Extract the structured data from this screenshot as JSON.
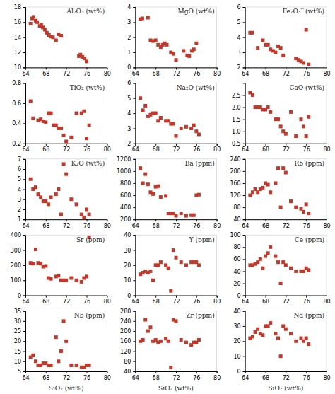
{
  "chart_data": [
    {
      "type": "scatter",
      "title": "Al₂O₃ (wt%)",
      "color": "#C0392B",
      "marker": "square",
      "xlim": [
        64,
        80
      ],
      "xticks": [
        64,
        68,
        72,
        76,
        80
      ],
      "ylim": [
        10,
        18
      ],
      "yticks": [
        10,
        12,
        14,
        16,
        18
      ],
      "x": [
        65.0,
        65.3,
        65.6,
        66.0,
        66.3,
        66.8,
        67.1,
        67.4,
        67.8,
        68.2,
        68.6,
        69.0,
        69.4,
        70.0,
        70.5,
        71.0,
        74.5,
        74.8,
        75.2,
        75.6,
        76.0
      ],
      "values": [
        15.8,
        16.5,
        16.7,
        16.2,
        16.0,
        15.5,
        15.7,
        15.3,
        15.0,
        14.6,
        14.3,
        14.1,
        14.0,
        13.6,
        14.4,
        14.2,
        11.5,
        11.7,
        11.4,
        11.2,
        10.8
      ]
    },
    {
      "type": "scatter",
      "title": "MgO (wt%)",
      "color": "#C0392B",
      "marker": "square",
      "xlim": [
        64,
        80
      ],
      "xticks": [
        64,
        68,
        72,
        76,
        80
      ],
      "ylim": [
        0,
        4
      ],
      "yticks": [
        0,
        1,
        2,
        3,
        4
      ],
      "x": [
        65.0,
        65.4,
        66.5,
        67.0,
        67.5,
        68.0,
        68.5,
        69.0,
        69.4,
        69.8,
        70.2,
        71.0,
        71.5,
        72.0,
        73.5,
        74.2,
        74.6,
        75.1,
        75.5,
        76.0
      ],
      "values": [
        3.2,
        3.25,
        3.3,
        1.8,
        1.75,
        1.8,
        1.5,
        1.35,
        1.5,
        1.6,
        1.5,
        1.0,
        0.9,
        0.5,
        1.1,
        0.8,
        0.75,
        1.1,
        1.2,
        1.6
      ]
    },
    {
      "type": "scatter",
      "title": "Fe₂O₃ᵀ (wt%)",
      "color": "#C0392B",
      "marker": "square",
      "xlim": [
        64,
        80
      ],
      "xticks": [
        64,
        68,
        72,
        76,
        80
      ],
      "ylim": [
        2,
        6
      ],
      "yticks": [
        2,
        3,
        4,
        5,
        6
      ],
      "x": [
        65.0,
        65.4,
        66.5,
        67.5,
        68.0,
        68.5,
        69.0,
        69.5,
        70.0,
        70.5,
        71.0,
        71.5,
        74.0,
        74.5,
        75.0,
        75.5,
        76.0,
        76.5
      ],
      "values": [
        4.3,
        4.3,
        3.3,
        3.8,
        3.5,
        3.5,
        3.2,
        3.1,
        3.0,
        3.4,
        3.3,
        2.8,
        2.6,
        2.5,
        2.4,
        2.3,
        4.5,
        2.2
      ]
    },
    {
      "type": "scatter",
      "title": "TiO₂ (wt%)",
      "color": "#C0392B",
      "marker": "square",
      "xlim": [
        64,
        80
      ],
      "xticks": [
        64,
        68,
        72,
        76,
        80
      ],
      "ylim": [
        0.2,
        0.8
      ],
      "yticks": [
        0.2,
        0.4,
        0.6,
        0.8
      ],
      "x": [
        65.0,
        65.5,
        66.5,
        67.0,
        67.5,
        68.0,
        68.5,
        69.0,
        69.5,
        70.0,
        70.5,
        71.0,
        71.5,
        72.0,
        73.0,
        74.0,
        75.0,
        75.5,
        76.0,
        76.5
      ],
      "values": [
        0.62,
        0.45,
        0.43,
        0.44,
        0.42,
        0.41,
        0.5,
        0.5,
        0.38,
        0.38,
        0.35,
        0.35,
        0.28,
        0.22,
        0.26,
        0.5,
        0.5,
        0.52,
        0.25,
        0.38
      ]
    },
    {
      "type": "scatter",
      "title": "Na₂O (wt%)",
      "color": "#C0392B",
      "marker": "square",
      "xlim": [
        64,
        80
      ],
      "xticks": [
        64,
        68,
        72,
        76,
        80
      ],
      "ylim": [
        2,
        6
      ],
      "yticks": [
        2,
        3,
        4,
        5,
        6
      ],
      "x": [
        65.0,
        65.5,
        66.0,
        66.5,
        67.0,
        67.5,
        68.0,
        68.5,
        69.0,
        70.0,
        70.5,
        71.0,
        71.5,
        72.0,
        73.0,
        74.0,
        75.0,
        75.5,
        76.0,
        76.5
      ],
      "values": [
        5.0,
        4.2,
        4.5,
        3.8,
        3.9,
        4.0,
        4.0,
        3.5,
        3.7,
        3.5,
        3.5,
        3.3,
        3.3,
        2.5,
        3.0,
        3.1,
        3.0,
        3.2,
        2.8,
        2.6
      ]
    },
    {
      "type": "scatter",
      "title": "CaO (wt%)",
      "color": "#C0392B",
      "marker": "square",
      "xlim": [
        64,
        80
      ],
      "xticks": [
        64,
        68,
        72,
        76,
        80
      ],
      "ylim": [
        0.5,
        3.0
      ],
      "yticks": [
        0.5,
        {
          "value": 1.0,
          "label": "1.0"
        },
        1.5,
        {
          "value": 2.0,
          "label": "2.0"
        },
        2.5
      ],
      "x": [
        65.0,
        65.5,
        66.0,
        66.5,
        67.0,
        67.5,
        68.0,
        68.5,
        69.0,
        70.0,
        70.5,
        71.0,
        71.5,
        72.0,
        73.0,
        74.0,
        75.0,
        75.5,
        76.0,
        76.5
      ],
      "values": [
        2.6,
        2.5,
        2.0,
        2.0,
        2.0,
        1.9,
        1.9,
        2.0,
        1.8,
        1.5,
        1.5,
        1.2,
        1.0,
        0.9,
        1.8,
        0.8,
        1.5,
        1.2,
        0.8,
        1.6
      ]
    },
    {
      "type": "scatter",
      "title": "K₂O (wt%)",
      "color": "#C0392B",
      "marker": "square",
      "xlim": [
        64,
        80
      ],
      "xticks": [
        64,
        68,
        72,
        76,
        80
      ],
      "ylim": [
        1,
        7
      ],
      "yticks": [
        1,
        2,
        3,
        4,
        5,
        6,
        7
      ],
      "x": [
        65.0,
        65.5,
        66.0,
        66.5,
        67.0,
        67.5,
        68.0,
        68.5,
        69.0,
        70.0,
        70.5,
        71.0,
        71.5,
        72.0,
        73.0,
        74.0,
        75.0,
        75.5,
        76.0,
        76.5
      ],
      "values": [
        5.0,
        4.0,
        4.2,
        3.5,
        3.2,
        2.8,
        2.8,
        2.5,
        3.2,
        3.5,
        4.0,
        1.5,
        6.5,
        5.5,
        3.0,
        2.5,
        1.5,
        1.2,
        2.0,
        1.5
      ]
    },
    {
      "type": "scatter",
      "title": "Ba (ppm)",
      "color": "#C0392B",
      "marker": "square",
      "xlim": [
        64,
        80
      ],
      "xticks": [
        64,
        68,
        72,
        76,
        80
      ],
      "ylim": [
        200,
        1200
      ],
      "yticks": [
        200,
        400,
        600,
        800,
        1000,
        1200
      ],
      "x": [
        65.0,
        65.5,
        66.0,
        66.5,
        67.0,
        67.5,
        68.0,
        68.5,
        69.0,
        70.0,
        70.5,
        71.0,
        71.5,
        72.0,
        73.0,
        74.0,
        75.0,
        75.5,
        76.0,
        76.5
      ],
      "values": [
        1050,
        800,
        950,
        780,
        650,
        620,
        740,
        750,
        570,
        590,
        300,
        300,
        300,
        260,
        300,
        260,
        270,
        270,
        600,
        610
      ]
    },
    {
      "type": "scatter",
      "title": "Rb (ppm)",
      "color": "#C0392B",
      "marker": "square",
      "xlim": [
        64,
        80
      ],
      "xticks": [
        64,
        68,
        72,
        76,
        80
      ],
      "ylim": [
        40,
        240
      ],
      "yticks": [
        40,
        80,
        120,
        160,
        200,
        240
      ],
      "x": [
        65.0,
        65.5,
        66.0,
        66.5,
        67.0,
        67.5,
        68.0,
        68.5,
        69.0,
        70.0,
        70.5,
        71.0,
        71.5,
        72.0,
        73.0,
        74.0,
        75.0,
        75.5,
        76.0,
        76.5
      ],
      "values": [
        120,
        130,
        140,
        130,
        140,
        145,
        160,
        155,
        130,
        160,
        210,
        80,
        210,
        195,
        100,
        80,
        75,
        65,
        90,
        60
      ]
    },
    {
      "type": "scatter",
      "title": "Sr (ppm)",
      "color": "#C0392B",
      "marker": "square",
      "xlim": [
        64,
        80
      ],
      "xticks": [
        64,
        68,
        72,
        76,
        80
      ],
      "ylim": [
        0,
        400
      ],
      "yticks": [
        0,
        100,
        200,
        300,
        400
      ],
      "x": [
        65.0,
        65.5,
        66.0,
        66.5,
        67.0,
        67.5,
        68.0,
        68.5,
        69.0,
        70.0,
        70.5,
        71.0,
        71.5,
        72.0,
        73.0,
        74.0,
        75.0,
        75.5,
        76.0,
        76.5
      ],
      "values": [
        215,
        210,
        305,
        215,
        210,
        190,
        195,
        115,
        110,
        125,
        130,
        100,
        100,
        100,
        115,
        100,
        90,
        115,
        125,
        385
      ]
    },
    {
      "type": "scatter",
      "title": "Y (ppm)",
      "color": "#C0392B",
      "marker": "square",
      "xlim": [
        64,
        80
      ],
      "xticks": [
        64,
        68,
        72,
        76,
        80
      ],
      "ylim": [
        0,
        40
      ],
      "yticks": [
        0,
        10,
        20,
        30,
        40
      ],
      "x": [
        65.0,
        65.5,
        66.0,
        66.5,
        67.0,
        67.5,
        68.0,
        68.5,
        69.0,
        70.0,
        70.5,
        71.0,
        71.5,
        72.0,
        73.0,
        74.0,
        75.0,
        75.5,
        76.0,
        76.5
      ],
      "values": [
        14,
        15,
        16,
        15,
        16,
        10,
        20,
        20,
        22,
        20,
        18,
        3,
        30,
        25,
        22,
        20,
        22,
        22,
        22,
        20
      ]
    },
    {
      "type": "scatter",
      "title": "Ce (ppm)",
      "color": "#C0392B",
      "marker": "square",
      "xlim": [
        64,
        80
      ],
      "xticks": [
        64,
        68,
        72,
        76,
        80
      ],
      "ylim": [
        0,
        100
      ],
      "yticks": [
        0,
        20,
        40,
        60,
        80,
        100
      ],
      "x": [
        65.0,
        65.5,
        66.0,
        66.5,
        67.0,
        67.5,
        68.0,
        68.5,
        69.0,
        70.0,
        70.5,
        71.0,
        71.5,
        72.0,
        73.0,
        74.0,
        75.0,
        75.5,
        76.0,
        76.5
      ],
      "values": [
        50,
        50,
        52,
        55,
        60,
        45,
        65,
        70,
        80,
        65,
        55,
        20,
        55,
        50,
        45,
        40,
        40,
        40,
        45,
        42
      ]
    },
    {
      "type": "scatter",
      "title": "Nb (ppm)",
      "color": "#C0392B",
      "marker": "square",
      "xlabel": "SiO₂ (wt%)",
      "xlim": [
        64,
        80
      ],
      "xticks": [
        64,
        68,
        72,
        76,
        80
      ],
      "ylim": [
        5,
        35
      ],
      "yticks": [
        5,
        10,
        15,
        20,
        25,
        30,
        35
      ],
      "x": [
        65.0,
        65.5,
        66.0,
        66.5,
        67.0,
        67.5,
        68.0,
        68.5,
        69.0,
        70.0,
        70.5,
        71.0,
        71.5,
        72.0,
        73.0,
        74.0,
        75.0,
        75.5,
        76.0,
        76.5
      ],
      "values": [
        12,
        13,
        10,
        8,
        8,
        9,
        9,
        8,
        8,
        22,
        10,
        15,
        30,
        20,
        8,
        8,
        7,
        7,
        8,
        8
      ]
    },
    {
      "type": "scatter",
      "title": "Zr (ppm)",
      "color": "#C0392B",
      "marker": "square",
      "xlabel": "SiO₂ (wt%)",
      "xlim": [
        64,
        80
      ],
      "xticks": [
        64,
        68,
        72,
        76,
        80
      ],
      "ylim": [
        40,
        280
      ],
      "yticks": [
        40,
        80,
        120,
        160,
        200,
        240,
        280
      ],
      "x": [
        65.0,
        65.5,
        66.0,
        66.5,
        67.0,
        67.5,
        68.0,
        68.5,
        69.0,
        70.0,
        70.5,
        71.0,
        71.5,
        72.0,
        73.0,
        74.0,
        75.0,
        75.5,
        76.0,
        76.5
      ],
      "values": [
        160,
        165,
        245,
        200,
        215,
        160,
        165,
        155,
        160,
        170,
        160,
        55,
        245,
        240,
        165,
        155,
        145,
        155,
        155,
        165
      ]
    },
    {
      "type": "scatter",
      "title": "Nd (ppm)",
      "color": "#C0392B",
      "marker": "square",
      "xlabel": "SiO₂ (wt%)",
      "xlim": [
        64,
        80
      ],
      "xticks": [
        64,
        68,
        72,
        76,
        80
      ],
      "ylim": [
        0,
        40
      ],
      "yticks": [
        0,
        10,
        20,
        30,
        40
      ],
      "x": [
        65.0,
        65.5,
        66.0,
        66.5,
        67.0,
        67.5,
        68.0,
        68.5,
        69.0,
        70.0,
        70.5,
        71.0,
        71.5,
        72.0,
        73.0,
        74.0,
        75.0,
        75.5,
        76.0,
        76.5
      ],
      "values": [
        22,
        23,
        26,
        28,
        25,
        24,
        30,
        30,
        32,
        25,
        22,
        10,
        30,
        28,
        25,
        20,
        22,
        20,
        22,
        18
      ]
    }
  ]
}
